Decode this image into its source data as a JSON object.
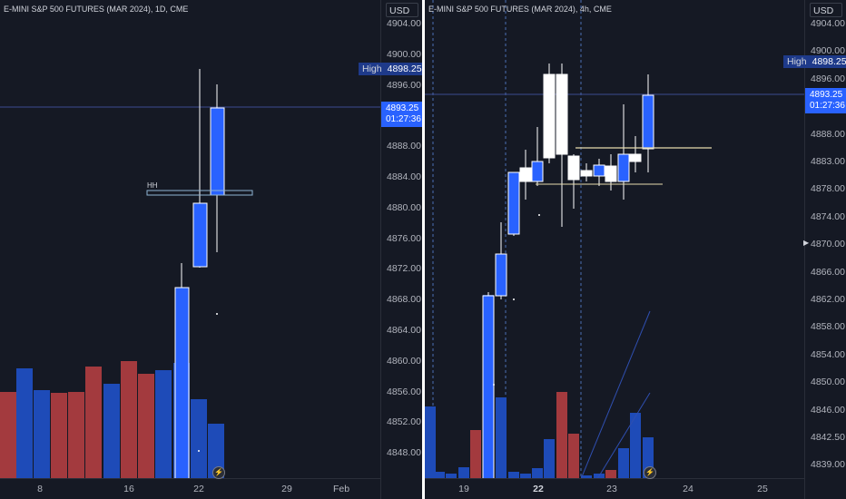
{
  "left": {
    "title": "E-MINI S&P 500 FUTURES (MAR 2024), 1D, CME",
    "currency": "USD",
    "price_ticks": [
      "4904.00",
      "4900.00",
      "4896.00",
      "4892.00",
      "4888.00",
      "4884.00",
      "4880.00",
      "4876.00",
      "4872.00",
      "4868.00",
      "4864.00",
      "4860.00",
      "4856.00",
      "4852.00",
      "4848.00"
    ],
    "high_label": "High",
    "high_value": "4898.25",
    "last_price": "4893.25",
    "countdown": "01:27:36",
    "annotation": "HH",
    "dates": [
      "8",
      "16",
      "22",
      "29",
      "Feb"
    ],
    "flash_icon": "lightning-icon"
  },
  "right": {
    "title": "E-MINI S&P 500 FUTURES (MAR 2024), 4h, CME",
    "currency": "USD",
    "price_ticks": [
      "4904.00",
      "4900.00",
      "4896.00",
      "4892.00",
      "4888.00",
      "4883.00",
      "4878.00",
      "4874.00",
      "4870.00",
      "4866.00",
      "4862.00",
      "4858.00",
      "4854.00",
      "4850.00",
      "4846.00",
      "4842.50",
      "4839.00"
    ],
    "high_label": "High",
    "high_value": "4898.25",
    "last_price": "4893.25",
    "countdown": "01:27:36",
    "dates": [
      "19",
      "22",
      "23",
      "24",
      "25"
    ],
    "flash_icon": "lightning-icon"
  },
  "colors": {
    "bg": "#151924",
    "up": "#2962ff",
    "down": "#ffffff",
    "vol_up": "#1e4bb8",
    "vol_down": "#a33a3e"
  }
}
